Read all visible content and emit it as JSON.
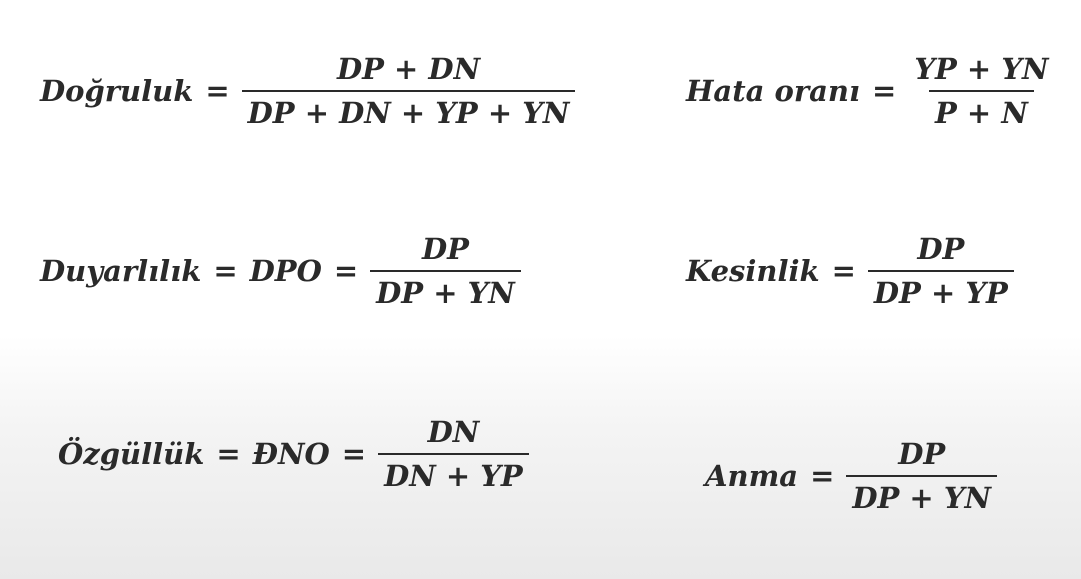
{
  "formulas": {
    "accuracy": {
      "label": "Doğruluk",
      "equals": "=",
      "numerator": "DP + DN",
      "denominator": "DP + DN + YP + YN"
    },
    "error_rate": {
      "label": "Hata oranı",
      "equals": "=",
      "numerator": "YP + YN",
      "denominator": "P + N"
    },
    "sensitivity": {
      "label": "Duyarlılık",
      "equals1": "=",
      "abbr": "DPO",
      "equals2": "=",
      "numerator": "DP",
      "denominator": "DP + YN"
    },
    "precision": {
      "label": "Kesinlik",
      "equals": "=",
      "numerator": "DP",
      "denominator": "DP + YP"
    },
    "specificity": {
      "label": "Özgüllük",
      "equals1": "=",
      "abbr": "ĐNO",
      "equals2": "=",
      "numerator": "DN",
      "denominator": "DN + YP"
    },
    "recall": {
      "label": "Anma",
      "equals": "=",
      "numerator": "DP",
      "denominator": "DP + YN"
    }
  }
}
